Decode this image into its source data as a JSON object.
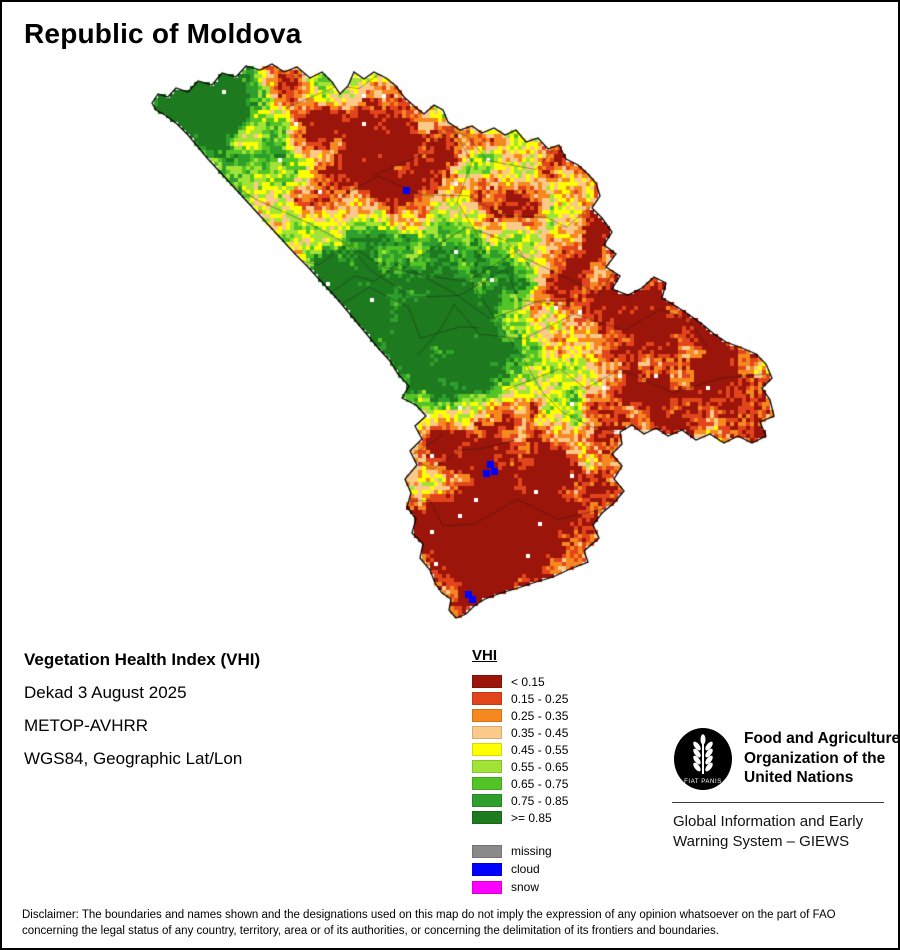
{
  "page": {
    "title": "Republic of Moldova"
  },
  "info_block": {
    "line1": "Vegetation Health Index (VHI)",
    "line2": "Dekad 3 August 2025",
    "line3": "METOP-AVHRR",
    "line4": "WGS84, Geographic Lat/Lon"
  },
  "legend": {
    "title": "VHI",
    "classes": [
      {
        "label": "< 0.15",
        "color": "#9b150a"
      },
      {
        "label": "0.15 - 0.25",
        "color": "#e2451c"
      },
      {
        "label": "0.25 - 0.35",
        "color": "#f5881f"
      },
      {
        "label": "0.35 - 0.45",
        "color": "#fbc98a"
      },
      {
        "label": "0.45 - 0.55",
        "color": "#feff00"
      },
      {
        "label": "0.55 - 0.65",
        "color": "#a2e337"
      },
      {
        "label": "0.65 - 0.75",
        "color": "#53c426"
      },
      {
        "label": "0.75 - 0.85",
        "color": "#2e9e2c"
      },
      {
        "label": ">= 0.85",
        "color": "#1e7a1e"
      }
    ],
    "extra": [
      {
        "label": "missing",
        "color": "#8a8a8a"
      },
      {
        "label": "cloud",
        "color": "#0000ff"
      },
      {
        "label": "snow",
        "color": "#ff00ff"
      }
    ]
  },
  "fao": {
    "org_line1": "Food and Agriculture",
    "org_line2": "Organization of the",
    "org_line3": "United Nations",
    "motto": "FIAT PANIS",
    "giews_line1": "Global Information and Early",
    "giews_line2": "Warning System – GIEWS"
  },
  "disclaimer": "Disclaimer: The boundaries and names shown and the designations used on this map do not imply the expression of any opinion whatsoever on the part of FAO concerning the legal status of any country, territory, area or of its authorities, or concerning the delimitation of its frontiers and boundaries."
}
